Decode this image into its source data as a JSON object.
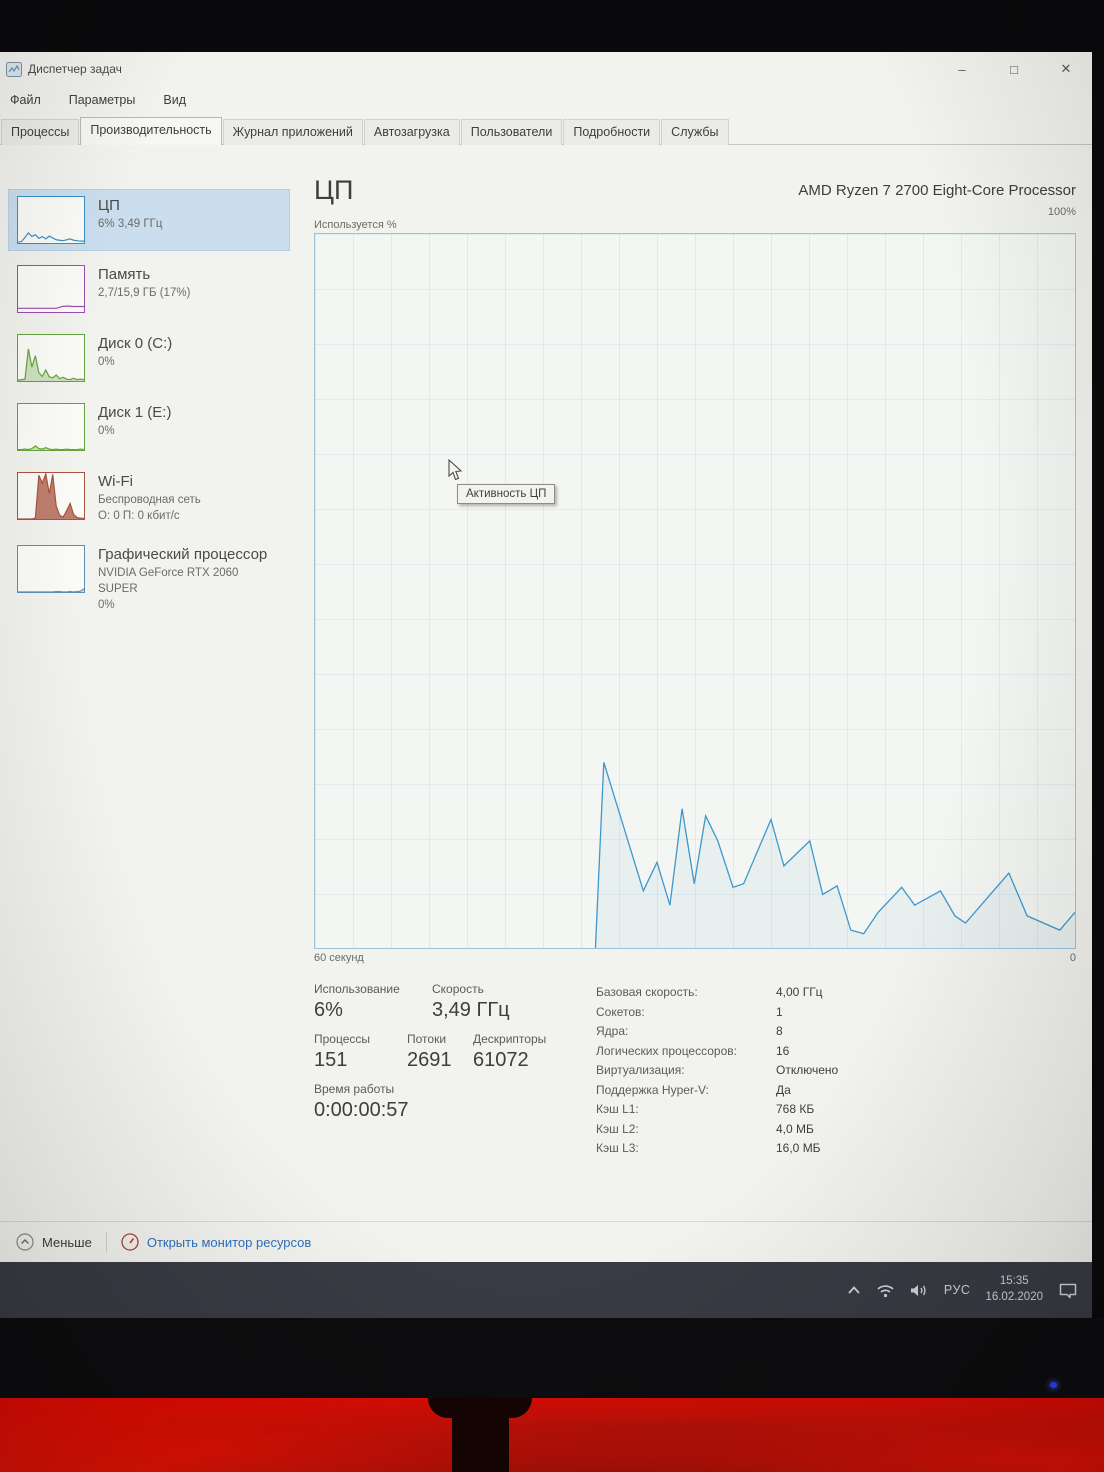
{
  "window": {
    "title": "Диспетчер задач",
    "controls": {
      "minimize_glyph": "–",
      "maximize_glyph": "□",
      "close_glyph": "✕"
    }
  },
  "menu": {
    "items": [
      "Файл",
      "Параметры",
      "Вид"
    ]
  },
  "tabs": {
    "active": "Производительность",
    "items": [
      "Процессы",
      "Производительность",
      "Журнал приложений",
      "Автозагрузка",
      "Пользователи",
      "Подробности",
      "Службы"
    ]
  },
  "sidebar": {
    "items": [
      {
        "id": "cpu",
        "line1": "ЦП",
        "line2": "6% 3,49 ГГц",
        "spark": {
          "color": "#3a8fc4",
          "fill": false,
          "fill_opacity": 0,
          "values": [
            2,
            3,
            12,
            22,
            14,
            18,
            10,
            14,
            9,
            15,
            11,
            7,
            6,
            5,
            7,
            9,
            6,
            5,
            4,
            4
          ]
        }
      },
      {
        "id": "memory",
        "line1": "Память",
        "line2": "2,7/15,9 ГБ (17%)",
        "spark": {
          "color": "#9a4fae",
          "fill": false,
          "fill_opacity": 0,
          "values": [
            8,
            8,
            8,
            8,
            8,
            8,
            8,
            8,
            12,
            13,
            12,
            12,
            12
          ]
        }
      },
      {
        "id": "disk0",
        "line1": "Диск 0 (C:)",
        "line2": "0%",
        "spark": {
          "color": "#65a33c",
          "fill": true,
          "fill_opacity": 0.3,
          "values": [
            2,
            3,
            4,
            70,
            30,
            55,
            18,
            10,
            24,
            9,
            7,
            13,
            5,
            8,
            4,
            3,
            6,
            3,
            4,
            3
          ]
        }
      },
      {
        "id": "disk1",
        "line1": "Диск 1 (E:)",
        "line2": "0%",
        "spark": {
          "color": "#65a33c",
          "fill": true,
          "fill_opacity": 0.3,
          "values": [
            1,
            1,
            2,
            1,
            3,
            9,
            3,
            2,
            5,
            2,
            1,
            2,
            1,
            1,
            2,
            1,
            1,
            1,
            2,
            1
          ]
        }
      },
      {
        "id": "wifi",
        "line1": "Wi-Fi",
        "line2": "Беспроводная сеть",
        "line3": "О: 0 П: 0 кбит/с",
        "spark": {
          "color": "#a8543f",
          "fill": true,
          "fill_opacity": 0.75,
          "values": [
            0,
            0,
            0,
            0,
            0,
            2,
            95,
            78,
            98,
            55,
            97,
            28,
            8,
            4,
            18,
            34,
            10,
            3,
            2,
            1
          ]
        }
      },
      {
        "id": "gpu",
        "line1": "Графический процессор",
        "line2": "NVIDIA GeForce RTX 2060 SUPER",
        "line3": "0%",
        "spark": {
          "color": "#5d8fb5",
          "fill": true,
          "fill_opacity": 0.3,
          "values": [
            0,
            0,
            0,
            0,
            0,
            0,
            0,
            0,
            0,
            0,
            0,
            1,
            1,
            0,
            0,
            1,
            0,
            1,
            2,
            7
          ]
        }
      }
    ]
  },
  "main": {
    "title": "ЦП",
    "subtitle": "AMD Ryzen 7 2700 Eight-Core Processor",
    "y_max_label": "100%",
    "y_axis_label": "Используется %",
    "x_left_label": "60 секунд",
    "x_right_label": "0",
    "tooltip": "Активность ЦП",
    "stats_left": {
      "usage": {
        "label": "Использование",
        "value": "6%"
      },
      "speed": {
        "label": "Скорость",
        "value": "3,49 ГГц"
      },
      "processes": {
        "label": "Процессы",
        "value": "151"
      },
      "threads": {
        "label": "Потоки",
        "value": "2691"
      },
      "handles": {
        "label": "Дескрипторы",
        "value": "61072"
      },
      "uptime": {
        "label": "Время работы",
        "value": "0:00:00:57"
      }
    },
    "stats_right": [
      {
        "label": "Базовая скорость:",
        "value": "4,00 ГГц"
      },
      {
        "label": "Сокетов:",
        "value": "1"
      },
      {
        "label": "Ядра:",
        "value": "8"
      },
      {
        "label": "Логических процессоров:",
        "value": "16"
      },
      {
        "label": "Виртуализация:",
        "value": "Отключено"
      },
      {
        "label": "Поддержка Hyper-V:",
        "value": "Да"
      },
      {
        "label": "Кэш L1:",
        "value": "768 КБ"
      },
      {
        "label": "Кэш L2:",
        "value": "4,0 МБ"
      },
      {
        "label": "Кэш L3:",
        "value": "16,0 МБ"
      }
    ]
  },
  "footer": {
    "less_label": "Меньше",
    "resmon_label": "Открыть монитор ресурсов"
  },
  "taskbar": {
    "lang": "РУС",
    "time": "15:35",
    "date": "16.02.2020"
  },
  "chart_data": {
    "type": "line",
    "title": "ЦП — Активность ЦП",
    "ylabel": "Используется %",
    "ylim": [
      0,
      100
    ],
    "y_max_label": "100%",
    "x_axis": {
      "left_label": "60 секунд",
      "right_label": "0",
      "span_seconds": 60
    },
    "grid": true,
    "line_color": "#3f97cc",
    "fill_opacity": 0.06,
    "points_note": "x = % across time axis (0 = 60s ago, 100 = now), y = CPU usage %",
    "points_pct": [
      [
        36.9,
        0
      ],
      [
        38,
        26
      ],
      [
        43.2,
        8
      ],
      [
        45,
        12
      ],
      [
        46.7,
        6
      ],
      [
        48.3,
        19.5
      ],
      [
        49.9,
        9
      ],
      [
        51.4,
        18.5
      ],
      [
        53,
        15
      ],
      [
        55,
        8.5
      ],
      [
        56.4,
        9
      ],
      [
        60,
        18
      ],
      [
        61.7,
        11.5
      ],
      [
        65.1,
        15
      ],
      [
        66.8,
        7.5
      ],
      [
        68.7,
        8.7
      ],
      [
        70.5,
        2.5
      ],
      [
        72.2,
        2
      ],
      [
        74.1,
        5
      ],
      [
        77.2,
        8.5
      ],
      [
        78.9,
        6
      ],
      [
        82.3,
        8
      ],
      [
        84.2,
        4.5
      ],
      [
        85.6,
        3.5
      ],
      [
        91.3,
        10.5
      ],
      [
        93.7,
        4.5
      ],
      [
        98,
        2.5
      ],
      [
        100,
        5
      ]
    ]
  }
}
